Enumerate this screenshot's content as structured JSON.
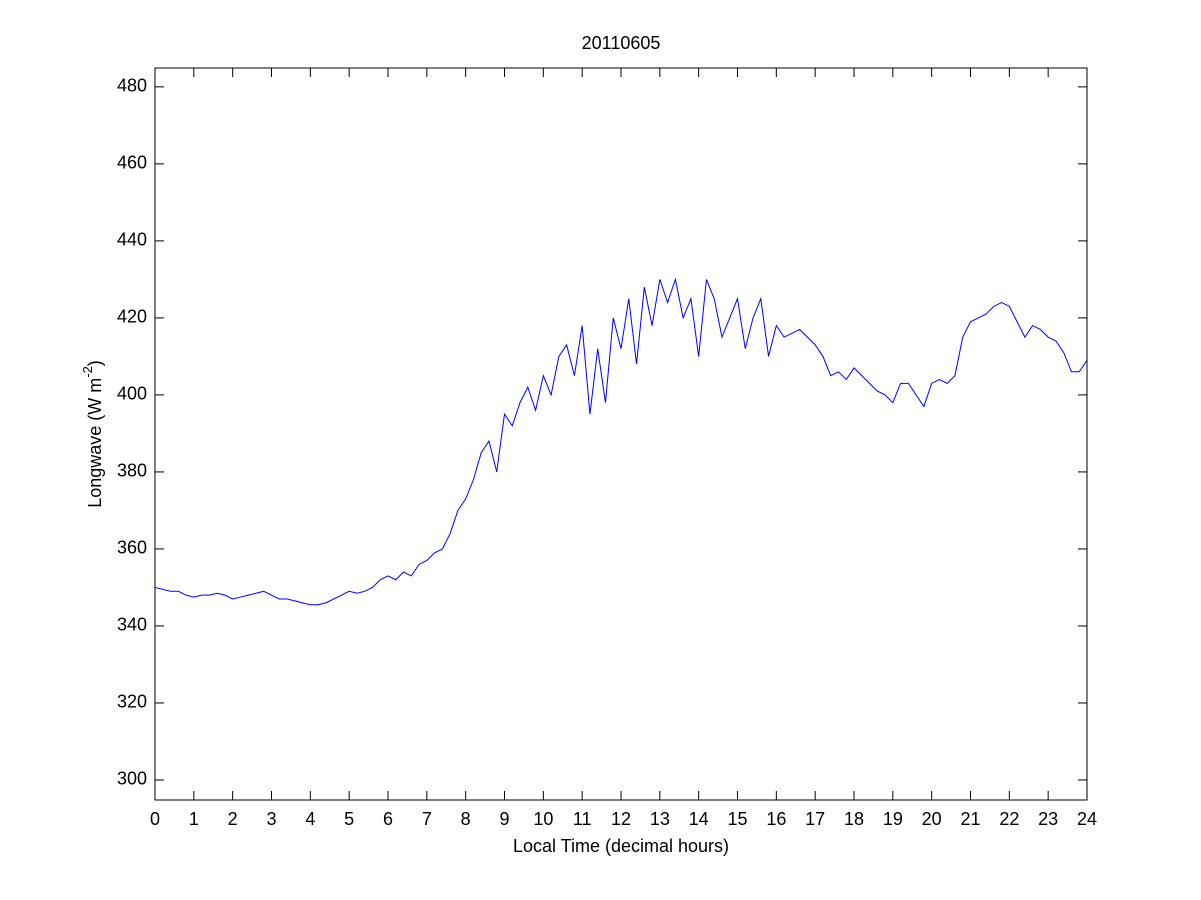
{
  "chart_data": {
    "type": "line",
    "title": "20110605",
    "xlabel": "Local Time (decimal hours)",
    "ylabel": {
      "text": "Longwave (W m",
      "superscript": "-2",
      "suffix": ")"
    },
    "x": [
      0,
      0.2,
      0.4,
      0.6,
      0.8,
      1,
      1.2,
      1.4,
      1.6,
      1.8,
      2,
      2.2,
      2.4,
      2.6,
      2.8,
      3,
      3.2,
      3.4,
      3.6,
      3.8,
      4,
      4.2,
      4.4,
      4.6,
      4.8,
      5,
      5.2,
      5.4,
      5.6,
      5.8,
      6,
      6.2,
      6.4,
      6.6,
      6.8,
      7,
      7.2,
      7.4,
      7.6,
      7.8,
      8,
      8.2,
      8.4,
      8.6,
      8.8,
      9,
      9.2,
      9.4,
      9.6,
      9.8,
      10,
      10.2,
      10.4,
      10.6,
      10.8,
      11,
      11.2,
      11.4,
      11.6,
      11.8,
      12,
      12.2,
      12.4,
      12.6,
      12.8,
      13,
      13.2,
      13.4,
      13.6,
      13.8,
      14,
      14.2,
      14.4,
      14.6,
      14.8,
      15,
      15.2,
      15.4,
      15.6,
      15.8,
      16,
      16.2,
      16.4,
      16.6,
      16.8,
      17,
      17.2,
      17.4,
      17.6,
      17.8,
      18,
      18.2,
      18.4,
      18.6,
      18.8,
      19,
      19.2,
      19.4,
      19.6,
      19.8,
      20,
      20.2,
      20.4,
      20.6,
      20.8,
      21,
      21.2,
      21.4,
      21.6,
      21.8,
      22,
      22.2,
      22.4,
      22.6,
      22.8,
      23,
      23.2,
      23.4,
      23.6,
      23.8,
      24
    ],
    "series": [
      {
        "name": "Longwave",
        "color": "#0000ff",
        "values": [
          350,
          349.5,
          349,
          349,
          348,
          347.5,
          348,
          348,
          348.5,
          348,
          347,
          347.5,
          348,
          348.5,
          349,
          348,
          347,
          347,
          346.5,
          346,
          345.5,
          345.5,
          346,
          347,
          348,
          349,
          348.5,
          349,
          350,
          352,
          353,
          352,
          354,
          353,
          356,
          357,
          359,
          360,
          364,
          370,
          373,
          378,
          385,
          388,
          380,
          395,
          392,
          398,
          402,
          396,
          405,
          400,
          410,
          413,
          405,
          418,
          395,
          412,
          398,
          420,
          412,
          425,
          408,
          428,
          418,
          430,
          424,
          430,
          420,
          425,
          410,
          430,
          425,
          415,
          420,
          425,
          412,
          420,
          425,
          410,
          418,
          415,
          416,
          417,
          415,
          413,
          410,
          405,
          406,
          404,
          407,
          405,
          403,
          401,
          400,
          398,
          403,
          403,
          400,
          397,
          403,
          404,
          403,
          405,
          415,
          419,
          420,
          421,
          423,
          424,
          423,
          419,
          415,
          418,
          417,
          415,
          414,
          411,
          406,
          406,
          409
        ]
      }
    ],
    "xlim": [
      0,
      24
    ],
    "xticks": [
      0,
      1,
      2,
      3,
      4,
      5,
      6,
      7,
      8,
      9,
      10,
      11,
      12,
      13,
      14,
      15,
      16,
      17,
      18,
      19,
      20,
      21,
      22,
      23,
      24
    ],
    "ylim": [
      294.8,
      484.9
    ],
    "yticks": [
      300,
      320,
      340,
      360,
      380,
      400,
      420,
      440,
      460,
      480
    ],
    "grid": false
  }
}
